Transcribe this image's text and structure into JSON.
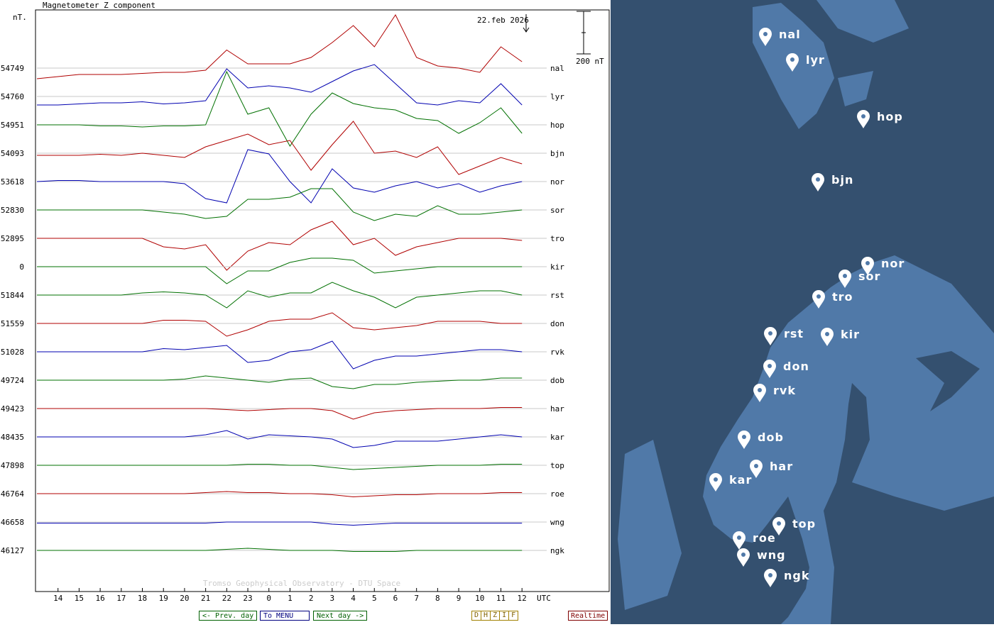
{
  "chart_data": {
    "type": "line",
    "title": "Magnetometer Z component",
    "y_unit": "nT.",
    "date_label": "22.feb 2026",
    "x_unit": "UTC",
    "credit": "Tromso Geophysical Observatory - DTU Space",
    "scale_bar": {
      "value": 200,
      "label": "200 nT"
    },
    "xlim": [
      0,
      27
    ],
    "xticks": [
      {
        "value": 1,
        "label": "14"
      },
      {
        "value": 2,
        "label": "15"
      },
      {
        "value": 3,
        "label": "16"
      },
      {
        "value": 4,
        "label": "17"
      },
      {
        "value": 5,
        "label": "18"
      },
      {
        "value": 6,
        "label": "19"
      },
      {
        "value": 7,
        "label": "20"
      },
      {
        "value": 8,
        "label": "21"
      },
      {
        "value": 9,
        "label": "22"
      },
      {
        "value": 10,
        "label": "23"
      },
      {
        "value": 11,
        "label": "0"
      },
      {
        "value": 12,
        "label": "1"
      },
      {
        "value": 13,
        "label": "2"
      },
      {
        "value": 14,
        "label": "3"
      },
      {
        "value": 15,
        "label": "4"
      },
      {
        "value": 16,
        "label": "5"
      },
      {
        "value": 17,
        "label": "6"
      },
      {
        "value": 18,
        "label": "7"
      },
      {
        "value": 19,
        "label": "8"
      },
      {
        "value": 20,
        "label": "9"
      },
      {
        "value": 21,
        "label": "10"
      },
      {
        "value": 22,
        "label": "11"
      },
      {
        "value": 23,
        "label": "12"
      }
    ],
    "x": [
      0,
      1,
      2,
      3,
      4,
      5,
      6,
      7,
      8,
      9,
      10,
      11,
      12,
      13,
      14,
      15,
      16,
      17,
      18,
      19,
      20,
      21,
      22,
      23
    ],
    "series": [
      {
        "name": "nal",
        "baseline": 54749,
        "color": "#b00000",
        "values": [
          -50,
          -40,
          -30,
          -30,
          -30,
          -25,
          -20,
          -20,
          -10,
          85,
          20,
          20,
          20,
          50,
          120,
          200,
          100,
          250,
          50,
          10,
          0,
          -20,
          100,
          30
        ]
      },
      {
        "name": "lyr",
        "baseline": 54760,
        "color": "#0000b0",
        "values": [
          -40,
          -40,
          -35,
          -30,
          -30,
          -25,
          -35,
          -30,
          -20,
          130,
          40,
          50,
          40,
          20,
          70,
          120,
          150,
          60,
          -30,
          -40,
          -20,
          -30,
          60,
          -40
        ]
      },
      {
        "name": "hop",
        "baseline": 54951,
        "color": "#007000",
        "values": [
          0,
          0,
          0,
          -5,
          -5,
          -10,
          -5,
          -5,
          0,
          250,
          50,
          80,
          -100,
          50,
          150,
          100,
          80,
          70,
          30,
          20,
          -40,
          10,
          80,
          -40
        ]
      },
      {
        "name": "bjn",
        "baseline": 54093,
        "color": "#b00000",
        "values": [
          -10,
          -10,
          -10,
          -5,
          -10,
          0,
          -10,
          -20,
          30,
          60,
          90,
          40,
          60,
          -80,
          40,
          150,
          0,
          10,
          -20,
          30,
          -100,
          -60,
          -20,
          -50
        ]
      },
      {
        "name": "nor",
        "baseline": 53618,
        "color": "#0000b0",
        "values": [
          0,
          5,
          5,
          0,
          0,
          0,
          0,
          -10,
          -80,
          -100,
          150,
          130,
          0,
          -100,
          60,
          -30,
          -50,
          -20,
          0,
          -30,
          -10,
          -50,
          -20,
          0
        ]
      },
      {
        "name": "sor",
        "baseline": 52830,
        "color": "#007000",
        "values": [
          0,
          0,
          0,
          0,
          0,
          0,
          -10,
          -20,
          -40,
          -30,
          50,
          50,
          60,
          100,
          100,
          -10,
          -50,
          -20,
          -30,
          20,
          -20,
          -20,
          -10,
          0
        ]
      },
      {
        "name": "tro",
        "baseline": 52895,
        "color": "#b00000",
        "values": [
          0,
          0,
          0,
          0,
          0,
          0,
          -40,
          -50,
          -30,
          -150,
          -60,
          -20,
          -30,
          40,
          80,
          -30,
          0,
          -80,
          -40,
          -20,
          0,
          0,
          0,
          -10
        ]
      },
      {
        "name": "kir",
        "baseline": 0,
        "color": "#007000",
        "values": [
          0,
          0,
          0,
          0,
          0,
          0,
          0,
          0,
          0,
          -80,
          -20,
          -20,
          20,
          40,
          40,
          30,
          -30,
          -20,
          -10,
          0,
          0,
          0,
          0,
          0
        ]
      },
      {
        "name": "rst",
        "baseline": 51844,
        "color": "#007000",
        "values": [
          0,
          0,
          0,
          0,
          0,
          10,
          15,
          10,
          0,
          -60,
          20,
          -10,
          10,
          10,
          60,
          20,
          -10,
          -60,
          -10,
          0,
          10,
          20,
          20,
          0
        ]
      },
      {
        "name": "don",
        "baseline": 51559,
        "color": "#b00000",
        "values": [
          0,
          0,
          0,
          0,
          0,
          0,
          15,
          15,
          10,
          -60,
          -30,
          10,
          20,
          20,
          50,
          -20,
          -30,
          -20,
          -10,
          10,
          10,
          10,
          0,
          0
        ]
      },
      {
        "name": "rvk",
        "baseline": 51028,
        "color": "#0000b0",
        "values": [
          0,
          0,
          0,
          0,
          0,
          0,
          15,
          10,
          20,
          30,
          -50,
          -40,
          0,
          10,
          50,
          -80,
          -40,
          -20,
          -20,
          -10,
          0,
          10,
          10,
          0
        ]
      },
      {
        "name": "dob",
        "baseline": 49724,
        "color": "#007000",
        "values": [
          0,
          0,
          0,
          0,
          0,
          0,
          0,
          5,
          20,
          10,
          0,
          -10,
          5,
          10,
          -30,
          -40,
          -20,
          -20,
          -10,
          -5,
          0,
          0,
          10,
          10
        ]
      },
      {
        "name": "har",
        "baseline": 49423,
        "color": "#b00000",
        "values": [
          0,
          0,
          0,
          0,
          0,
          0,
          0,
          0,
          0,
          -5,
          -10,
          -5,
          0,
          0,
          -10,
          -50,
          -20,
          -10,
          -5,
          0,
          0,
          0,
          5,
          5
        ]
      },
      {
        "name": "kar",
        "baseline": 48435,
        "color": "#0000b0",
        "values": [
          0,
          0,
          0,
          0,
          0,
          0,
          0,
          0,
          10,
          30,
          -10,
          10,
          5,
          0,
          -10,
          -50,
          -40,
          -20,
          -20,
          -20,
          -10,
          0,
          10,
          0
        ]
      },
      {
        "name": "top",
        "baseline": 47898,
        "color": "#007000",
        "values": [
          0,
          0,
          0,
          0,
          0,
          0,
          0,
          0,
          0,
          0,
          5,
          5,
          0,
          0,
          -10,
          -20,
          -15,
          -10,
          -5,
          0,
          0,
          0,
          5,
          5
        ]
      },
      {
        "name": "roe",
        "baseline": 46764,
        "color": "#b00000",
        "values": [
          0,
          0,
          0,
          0,
          0,
          0,
          0,
          0,
          5,
          10,
          5,
          5,
          0,
          0,
          -5,
          -15,
          -10,
          -5,
          -5,
          0,
          0,
          0,
          5,
          5
        ]
      },
      {
        "name": "wng",
        "baseline": 46658,
        "color": "#0000b0",
        "values": [
          -5,
          -5,
          -5,
          -5,
          -5,
          -5,
          -5,
          -5,
          -5,
          0,
          0,
          0,
          0,
          0,
          -10,
          -15,
          -10,
          -5,
          -5,
          -5,
          -5,
          -5,
          -5,
          -5
        ]
      },
      {
        "name": "ngk",
        "baseline": 46127,
        "color": "#007000",
        "values": [
          0,
          0,
          0,
          0,
          0,
          0,
          0,
          0,
          0,
          5,
          10,
          5,
          0,
          0,
          0,
          -5,
          -5,
          -5,
          0,
          0,
          0,
          0,
          0,
          0
        ]
      }
    ]
  },
  "nav": {
    "prev": "<- Prev. day",
    "menu": "To MENU",
    "next": "Next day ->",
    "components": [
      "D",
      "H",
      "Z",
      "I",
      "F"
    ],
    "realtime": "Realtime"
  },
  "map": {
    "stations": [
      "nal",
      "lyr",
      "hop",
      "bjn",
      "nor",
      "sor",
      "tro",
      "rst",
      "kir",
      "don",
      "rvk",
      "dob",
      "har",
      "kar",
      "top",
      "roe",
      "wng",
      "ngk"
    ]
  }
}
